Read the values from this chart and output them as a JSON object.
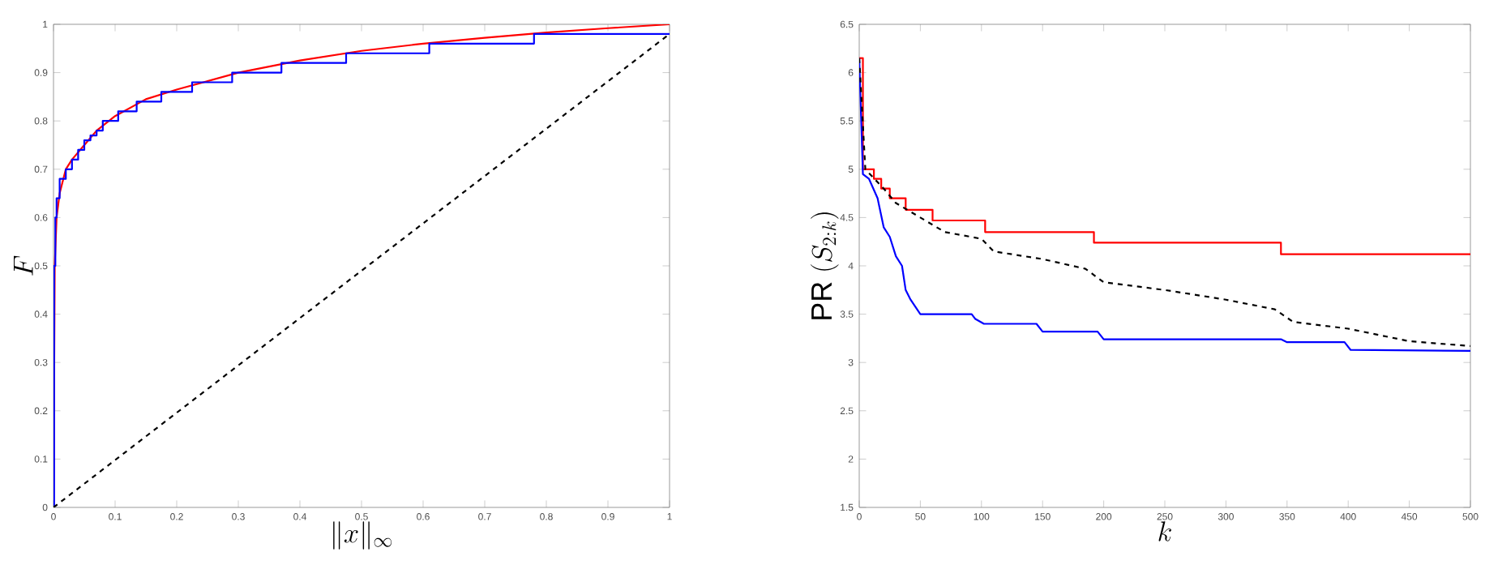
{
  "chart_data": [
    {
      "type": "line",
      "xlabel": "\\|x\\|_\\infty",
      "ylabel": "F",
      "xlim": [
        0,
        1
      ],
      "ylim": [
        0,
        1
      ],
      "xticks": [
        0,
        0.1,
        0.2,
        0.3,
        0.4,
        0.5,
        0.6,
        0.7,
        0.8,
        0.9,
        1
      ],
      "yticks": [
        0,
        0.1,
        0.2,
        0.3,
        0.4,
        0.5,
        0.6,
        0.7,
        0.8,
        0.9,
        1
      ],
      "series": [
        {
          "color": "#ff0000",
          "x": [
            0,
            0.002,
            0.005,
            0.01,
            0.02,
            0.03,
            0.05,
            0.07,
            0.1,
            0.15,
            0.2,
            0.3,
            0.4,
            0.5,
            0.6,
            0.7,
            0.8,
            0.9,
            1
          ],
          "values": [
            0,
            0.5,
            0.6,
            0.65,
            0.7,
            0.72,
            0.75,
            0.78,
            0.81,
            0.845,
            0.865,
            0.9,
            0.925,
            0.945,
            0.96,
            0.972,
            0.983,
            0.992,
            1
          ]
        },
        {
          "type": "step",
          "color": "#0000ff",
          "x": [
            0,
            0.001,
            0.003,
            0.005,
            0.01,
            0.02,
            0.03,
            0.04,
            0.05,
            0.06,
            0.07,
            0.08,
            0.105,
            0.135,
            0.175,
            0.225,
            0.29,
            0.37,
            0.475,
            0.61,
            0.78,
            1
          ],
          "values": [
            0,
            0.5,
            0.6,
            0.64,
            0.68,
            0.7,
            0.72,
            0.74,
            0.76,
            0.77,
            0.78,
            0.8,
            0.82,
            0.84,
            0.86,
            0.88,
            0.9,
            0.92,
            0.94,
            0.96,
            0.98,
            0.98
          ]
        },
        {
          "color": "#000000",
          "line_style": "dashed",
          "x": [
            0,
            1
          ],
          "values": [
            0,
            0.98
          ]
        }
      ]
    },
    {
      "type": "line",
      "xlabel": "k",
      "ylabel": "\\mathrm{PR}\\ (S_{2:k})",
      "xlim": [
        0,
        500
      ],
      "ylim": [
        1.5,
        6.5
      ],
      "xticks": [
        0,
        50,
        100,
        150,
        200,
        250,
        300,
        350,
        400,
        450,
        500
      ],
      "yticks": [
        1.5,
        2,
        2.5,
        3,
        3.5,
        4,
        4.5,
        5,
        5.5,
        6,
        6.5
      ],
      "series": [
        {
          "type": "step",
          "color": "#ff0000",
          "x": [
            0,
            3,
            12,
            18,
            25,
            38,
            60,
            103,
            192,
            345,
            500
          ],
          "values": [
            6.15,
            5.0,
            4.9,
            4.8,
            4.7,
            4.58,
            4.47,
            4.35,
            4.24,
            4.12,
            4.12
          ]
        },
        {
          "color": "#0000ff",
          "x": [
            0,
            3,
            8,
            15,
            20,
            25,
            30,
            35,
            38,
            42,
            50,
            92,
            95,
            102,
            145,
            150,
            195,
            200,
            345,
            350,
            397,
            402,
            500
          ],
          "values": [
            6.15,
            4.95,
            4.9,
            4.7,
            4.4,
            4.3,
            4.1,
            4.0,
            3.75,
            3.65,
            3.5,
            3.5,
            3.45,
            3.4,
            3.4,
            3.32,
            3.32,
            3.24,
            3.24,
            3.21,
            3.21,
            3.13,
            3.12
          ]
        },
        {
          "color": "#000000",
          "line_style": "dashed",
          "x": [
            0,
            5,
            20,
            30,
            50,
            70,
            100,
            110,
            150,
            185,
            200,
            250,
            300,
            340,
            355,
            400,
            450,
            500
          ],
          "values": [
            6.15,
            5.0,
            4.8,
            4.65,
            4.5,
            4.35,
            4.28,
            4.15,
            4.07,
            3.97,
            3.83,
            3.75,
            3.65,
            3.55,
            3.42,
            3.35,
            3.22,
            3.17
          ]
        }
      ]
    }
  ]
}
